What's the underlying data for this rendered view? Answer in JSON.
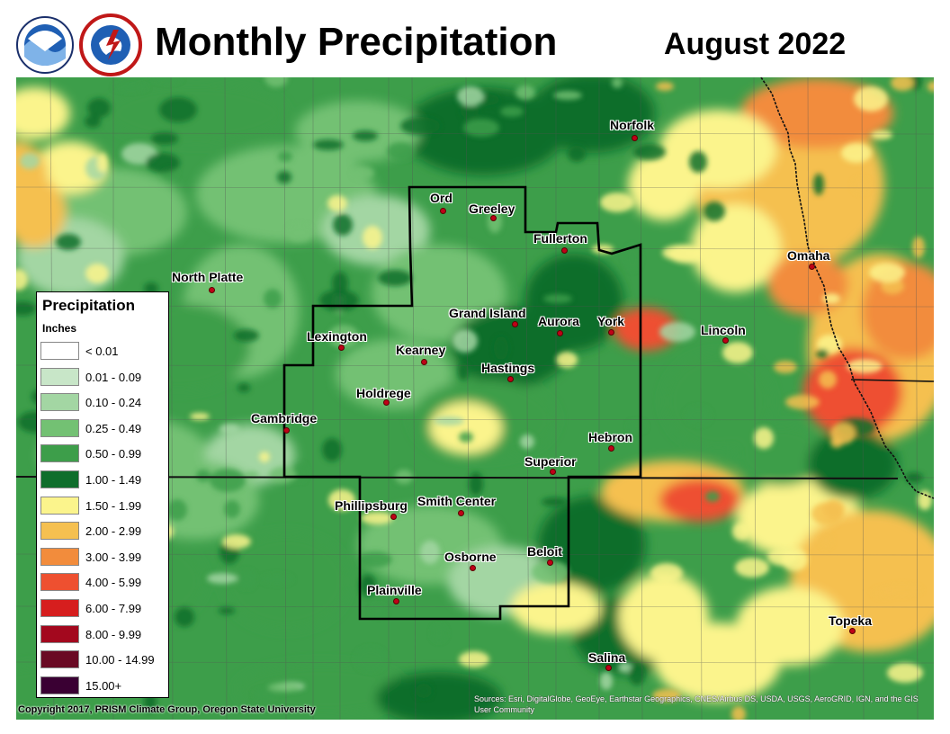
{
  "header": {
    "title": "Monthly Precipitation",
    "subtitle": "August 2022"
  },
  "logos": {
    "noaa_text": "NOAA",
    "nws_text": "NATIONAL WEATHER SERVICE"
  },
  "legend": {
    "title": "Precipitation",
    "units": "Inches",
    "items": [
      {
        "label": "< 0.01",
        "color": "#ffffff"
      },
      {
        "label": "0.01 - 0.09",
        "color": "#c8e6c8"
      },
      {
        "label": "0.10 - 0.24",
        "color": "#a3d6a3"
      },
      {
        "label": "0.25 - 0.49",
        "color": "#73c173"
      },
      {
        "label": "0.50 - 0.99",
        "color": "#3d9e4a"
      },
      {
        "label": "1.00 - 1.49",
        "color": "#0f6e2c"
      },
      {
        "label": "1.50 - 1.99",
        "color": "#fbf48c"
      },
      {
        "label": "2.00 - 2.99",
        "color": "#f5c050"
      },
      {
        "label": "3.00 - 3.99",
        "color": "#f28c3c"
      },
      {
        "label": "4.00 - 5.99",
        "color": "#ee5030"
      },
      {
        "label": "6.00 - 7.99",
        "color": "#d61e1e"
      },
      {
        "label": "8.00 - 9.99",
        "color": "#a3081e"
      },
      {
        "label": "10.00 - 14.99",
        "color": "#6a0a24"
      },
      {
        "label": "15.00+",
        "color": "#3a0033"
      }
    ]
  },
  "cities": [
    {
      "name": "Norfolk"
    },
    {
      "name": "Ord"
    },
    {
      "name": "Greeley"
    },
    {
      "name": "Fullerton"
    },
    {
      "name": "Omaha"
    },
    {
      "name": "North Platte"
    },
    {
      "name": "Grand Island"
    },
    {
      "name": "Aurora"
    },
    {
      "name": "York"
    },
    {
      "name": "Lincoln"
    },
    {
      "name": "Lexington"
    },
    {
      "name": "Kearney"
    },
    {
      "name": "Hastings"
    },
    {
      "name": "Holdrege"
    },
    {
      "name": "Cambridge"
    },
    {
      "name": "Hebron"
    },
    {
      "name": "Superior"
    },
    {
      "name": "Phillipsburg"
    },
    {
      "name": "Smith Center"
    },
    {
      "name": "Beloit"
    },
    {
      "name": "Osborne"
    },
    {
      "name": "Plainville"
    },
    {
      "name": "Topeka"
    },
    {
      "name": "Salina"
    }
  ],
  "footer": {
    "copyright": "Copyright 2017, PRISM Climate Group, Oregon State University",
    "credits": "Sources: Esri, DigitalGlobe, GeoEye, Earthstar Geographics, CNES/Airbus DS, USDA, USGS, AeroGRID, IGN, and the GIS User Community"
  }
}
